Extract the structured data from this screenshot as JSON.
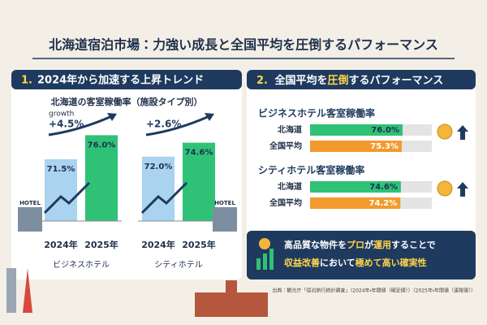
{
  "title": "北海道宿泊市場：力強い成長と全国平均を圧倒するパフォーマンス",
  "left": {
    "number": "1.",
    "heading": "2024年から加速する上昇トレンド",
    "chart_title": "北海道の客室稼働率（施設タイプ別）",
    "ylim": [
      60,
      80
    ],
    "growth_label": "growth",
    "hotel_sign": "HOTEL",
    "groups": [
      {
        "name": "ビジネスホテル",
        "growth": "+4.5%",
        "categories": [
          "2024年",
          "2025年"
        ],
        "values": [
          71.5,
          76.0
        ],
        "value_labels": [
          "71.5%",
          "76.0%"
        ],
        "colors": [
          "#a9d3ef",
          "#2fc277"
        ]
      },
      {
        "name": "シティホテル",
        "growth": "+2.6%",
        "categories": [
          "2024年",
          "2025年"
        ],
        "values": [
          72.0,
          74.6
        ],
        "value_labels": [
          "72.0%",
          "74.6%"
        ],
        "colors": [
          "#a9d3ef",
          "#2fc277"
        ]
      }
    ]
  },
  "right": {
    "number": "2.",
    "heading_parts": [
      "全国平均を",
      "圧倒",
      "するパフォーマンス"
    ],
    "xlim": [
      0,
      100
    ],
    "sections": [
      {
        "title": "ビジネスホテル客室稼働率",
        "rows": [
          "北海道",
          "全国平均"
        ],
        "values": [
          76.0,
          75.3
        ],
        "value_labels": [
          "76.0%",
          "75.3%"
        ],
        "colors": [
          "#2fc277",
          "#f39a2e"
        ]
      },
      {
        "title": "シティホテル客室稼働率",
        "rows": [
          "北海道",
          "全国平均"
        ],
        "values": [
          74.6,
          74.2
        ],
        "value_labels": [
          "74.6%",
          "74.2%"
        ],
        "colors": [
          "#2fc277",
          "#f39a2e"
        ]
      }
    ],
    "callout": {
      "line1": [
        "高品質な物件を",
        "プロ",
        "が",
        "運用",
        "することで"
      ],
      "line2": [
        "収益改善",
        "において",
        "極めて高い確実性"
      ]
    }
  },
  "source": "出典：観光庁「宿泊旅行統計調査」（2024年・年間値（確定値））（2025年・年間値（速報値））"
}
